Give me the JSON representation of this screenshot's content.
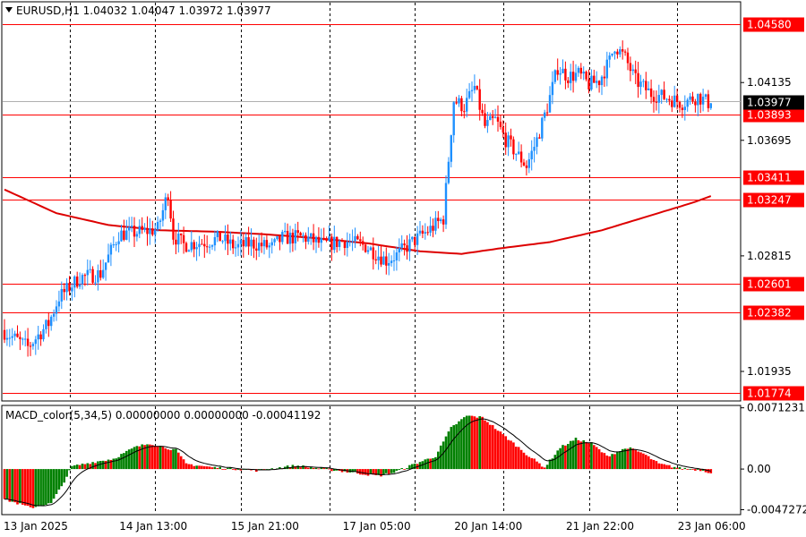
{
  "main_header": {
    "symbol": "EURUSD",
    "timeframe": "H1",
    "ohlc": "1.04032 1.04047 1.03972 1.03977"
  },
  "macd_header": {
    "label": "MACD_color(5,34,5) 0.00000000 0.00000000 -0.00041192"
  },
  "colors": {
    "bull": "#1e90ff",
    "bear": "#ff0000",
    "level_line": "#ff0000",
    "sma": "#dd0000",
    "hist_up": "#008000",
    "hist_down": "#ff0000",
    "signal": "#000000",
    "current_price_tag": "#000000"
  },
  "chart_data": [
    {
      "type": "candlestick",
      "symbol": "EURUSD",
      "timeframe": "H1",
      "ylim": [
        1.0171,
        1.0475
      ],
      "y_ticks": [
        "1.04135",
        "1.03695",
        "1.02815",
        "1.01935"
      ],
      "x_ticks": [
        "13 Jan 2025",
        "14 Jan 13:00",
        "15 Jan 21:00",
        "17 Jan 05:00",
        "20 Jan 14:00",
        "21 Jan 22:00",
        "23 Jan 06:00"
      ],
      "horizontal_levels": [
        "1.04580",
        "1.03893",
        "1.03411",
        "1.03247",
        "1.02601",
        "1.02382",
        "1.01774"
      ],
      "current_price": "1.03977",
      "grid": "vertical dashed",
      "anchors": [
        [
          0,
          1.0225
        ],
        [
          10,
          1.0212
        ],
        [
          18,
          1.023
        ],
        [
          22,
          1.025
        ],
        [
          30,
          1.0265
        ],
        [
          38,
          1.0268
        ],
        [
          45,
          1.0298
        ],
        [
          55,
          1.03
        ],
        [
          60,
          1.0302
        ],
        [
          64,
          1.033
        ],
        [
          66,
          1.0297
        ],
        [
          70,
          1.029
        ],
        [
          78,
          1.0292
        ],
        [
          84,
          1.0295
        ],
        [
          90,
          1.0288
        ],
        [
          96,
          1.0291
        ],
        [
          104,
          1.0288
        ],
        [
          108,
          1.0295
        ],
        [
          116,
          1.0296
        ],
        [
          124,
          1.029
        ],
        [
          132,
          1.0293
        ],
        [
          140,
          1.0289
        ],
        [
          148,
          1.0278
        ],
        [
          152,
          1.0282
        ],
        [
          158,
          1.0292
        ],
        [
          165,
          1.0302
        ],
        [
          170,
          1.031
        ],
        [
          174,
          1.04
        ],
        [
          178,
          1.0395
        ],
        [
          182,
          1.041
        ],
        [
          186,
          1.038
        ],
        [
          190,
          1.0385
        ],
        [
          194,
          1.037
        ],
        [
          198,
          1.036
        ],
        [
          202,
          1.035
        ],
        [
          206,
          1.037
        ],
        [
          210,
          1.0395
        ],
        [
          214,
          1.0425
        ],
        [
          218,
          1.0418
        ],
        [
          222,
          1.042
        ],
        [
          226,
          1.0412
        ],
        [
          230,
          1.0415
        ],
        [
          234,
          1.043
        ],
        [
          236,
          1.0442
        ],
        [
          240,
          1.0432
        ],
        [
          244,
          1.0415
        ],
        [
          250,
          1.0405
        ],
        [
          256,
          1.0402
        ],
        [
          262,
          1.0398
        ],
        [
          268,
          1.0403
        ],
        [
          272,
          1.0398
        ]
      ],
      "sma_path": [
        [
          0,
          1.0332
        ],
        [
          20,
          1.0314
        ],
        [
          40,
          1.0305
        ],
        [
          60,
          1.0301
        ],
        [
          80,
          1.03
        ],
        [
          100,
          1.0298
        ],
        [
          120,
          1.0295
        ],
        [
          140,
          1.0291
        ],
        [
          160,
          1.0285
        ],
        [
          176,
          1.0283
        ],
        [
          190,
          1.0287
        ],
        [
          210,
          1.0292
        ],
        [
          230,
          1.0301
        ],
        [
          250,
          1.0313
        ],
        [
          265,
          1.0322
        ],
        [
          272,
          1.0327
        ]
      ]
    },
    {
      "type": "macd_histogram",
      "title": "MACD_color(5,34,5)",
      "ylim": [
        -0.0053,
        0.0074
      ],
      "y_ticks": [
        "0.0071231",
        "0.00",
        "-0.0047272"
      ],
      "anchors": [
        [
          0,
          -0.0035
        ],
        [
          10,
          -0.0045
        ],
        [
          18,
          -0.004
        ],
        [
          22,
          -0.002
        ],
        [
          26,
          0.0003
        ],
        [
          34,
          0.0008
        ],
        [
          42,
          0.0012
        ],
        [
          50,
          0.0025
        ],
        [
          56,
          0.003
        ],
        [
          62,
          0.0025
        ],
        [
          66,
          0.0022
        ],
        [
          70,
          0.0006
        ],
        [
          80,
          0.0002
        ],
        [
          90,
          0.0
        ],
        [
          98,
          -0.0002
        ],
        [
          104,
          0.0001
        ],
        [
          112,
          0.0004
        ],
        [
          118,
          0.0002
        ],
        [
          126,
          -0.0001
        ],
        [
          134,
          -0.0004
        ],
        [
          144,
          -0.0008
        ],
        [
          150,
          -0.0004
        ],
        [
          158,
          0.0006
        ],
        [
          166,
          0.0015
        ],
        [
          172,
          0.0048
        ],
        [
          178,
          0.0062
        ],
        [
          184,
          0.006
        ],
        [
          190,
          0.0045
        ],
        [
          196,
          0.003
        ],
        [
          202,
          0.0015
        ],
        [
          208,
          0.0002
        ],
        [
          214,
          0.0025
        ],
        [
          220,
          0.0035
        ],
        [
          226,
          0.003
        ],
        [
          232,
          0.0015
        ],
        [
          240,
          0.0025
        ],
        [
          246,
          0.0018
        ],
        [
          252,
          0.0006
        ],
        [
          260,
          0.0001
        ],
        [
          268,
          -0.0001
        ],
        [
          272,
          -0.0004
        ]
      ]
    }
  ]
}
